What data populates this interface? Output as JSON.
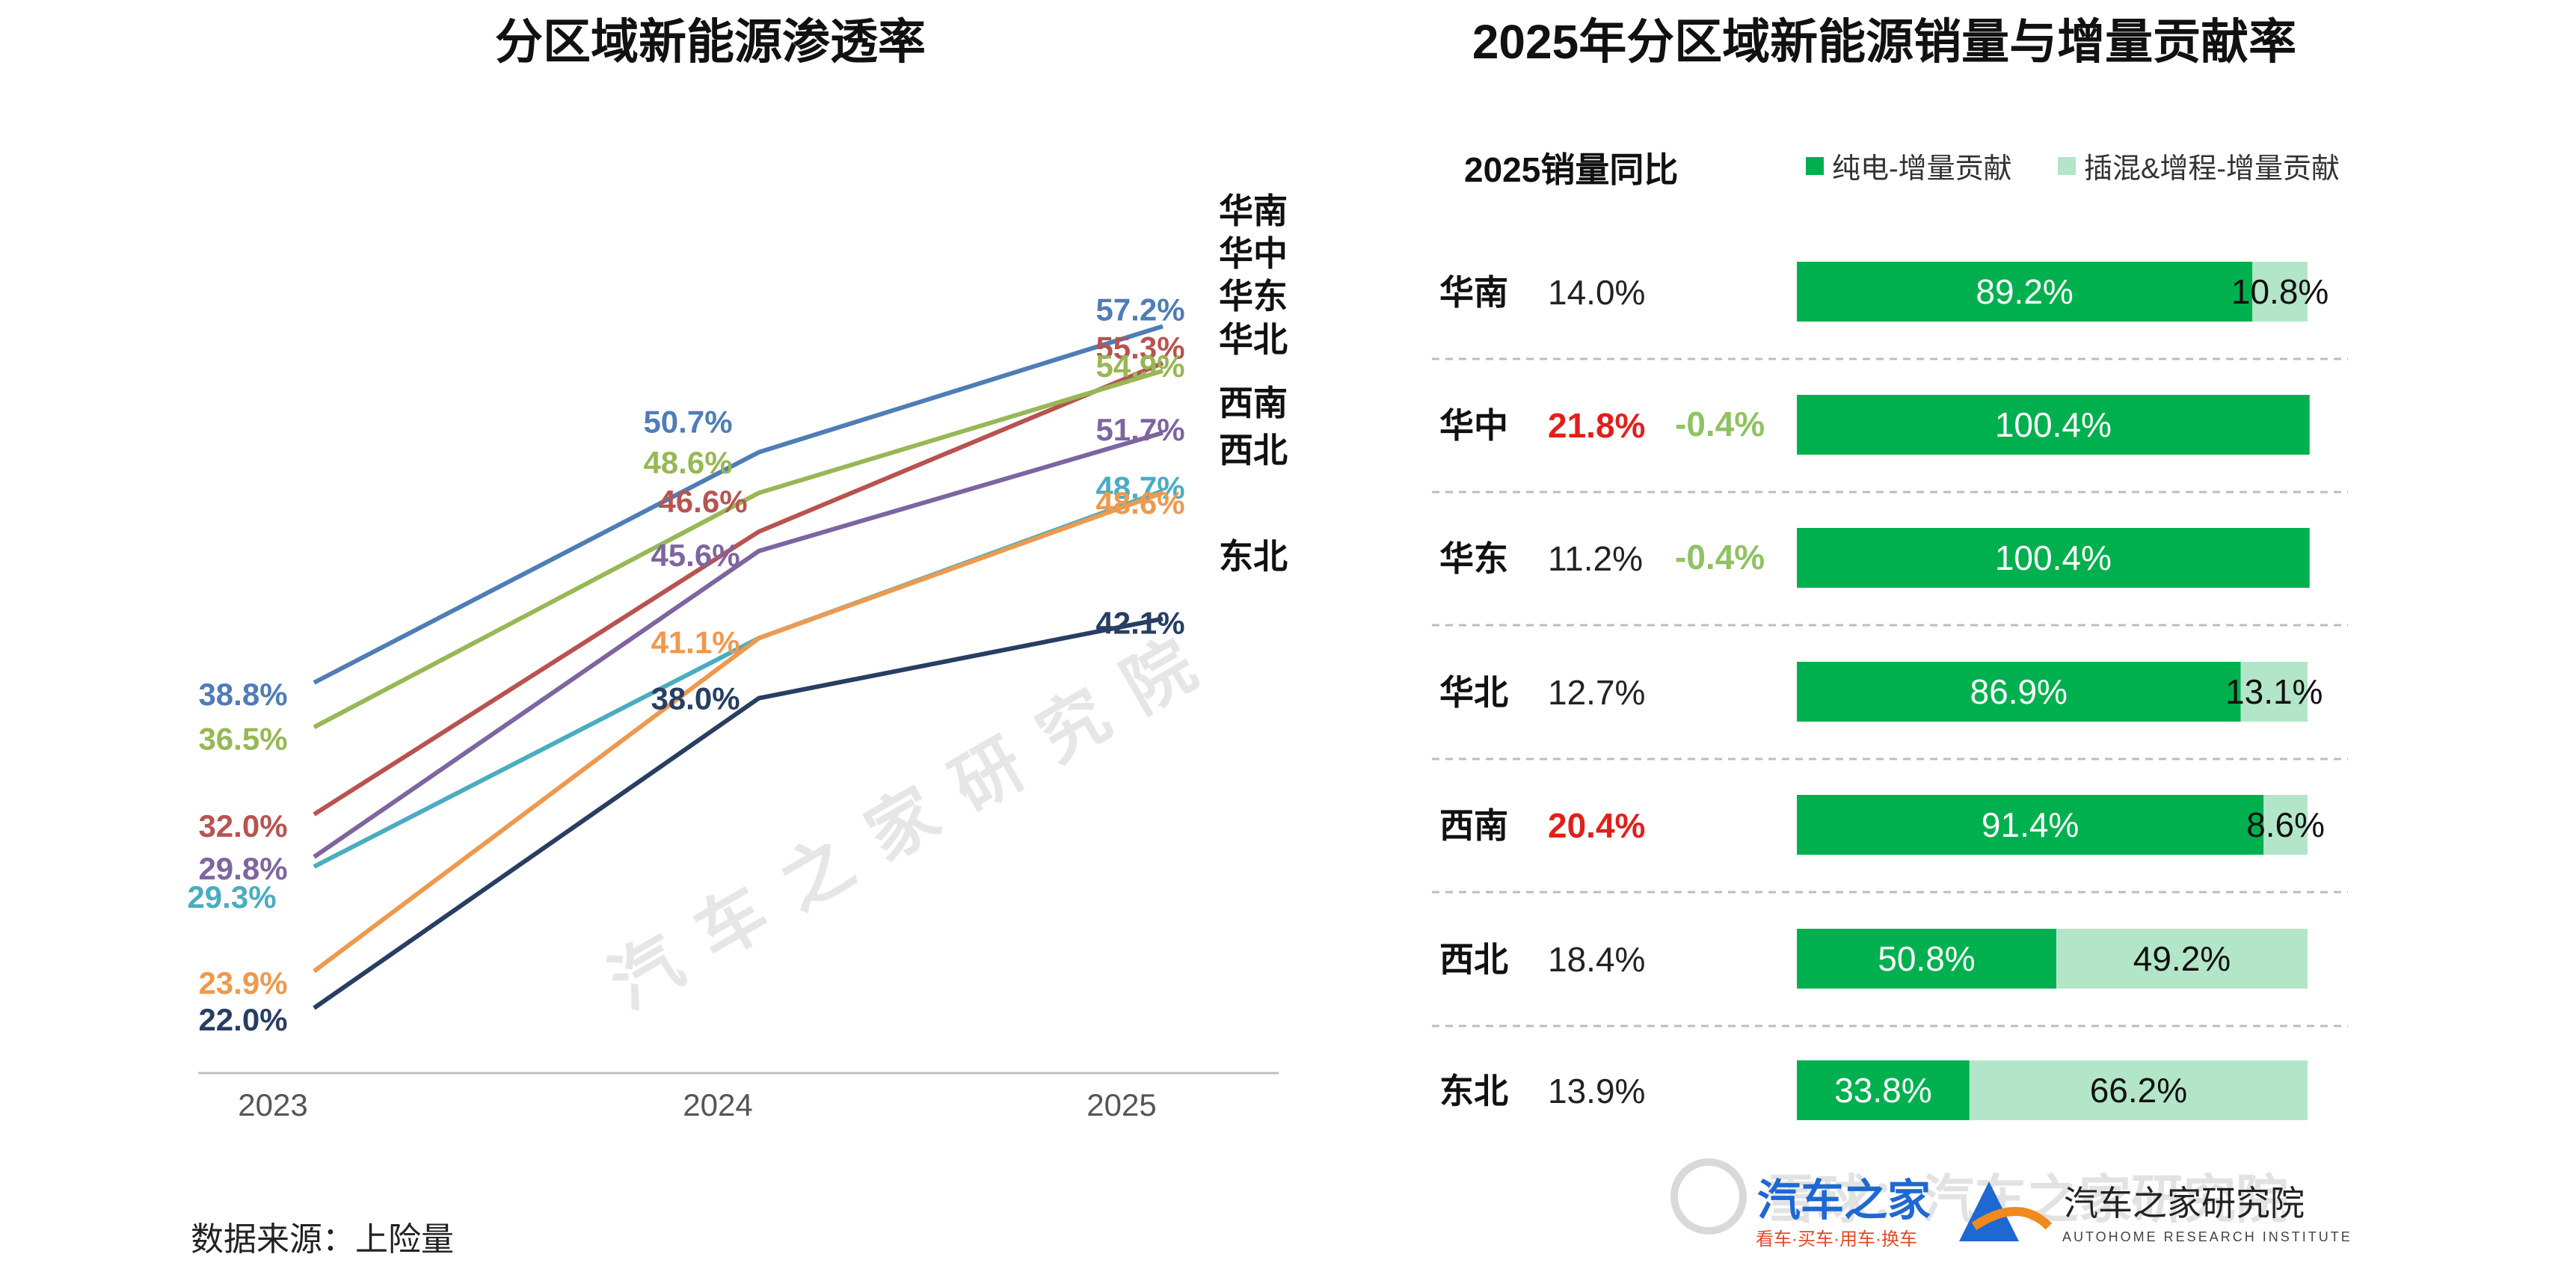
{
  "chart_data": [
    {
      "type": "line",
      "title": "分区域新能源渗透率",
      "categories": [
        "2023",
        "2024",
        "2025"
      ],
      "ylim": [
        20,
        60
      ],
      "series": [
        {
          "name": "华南",
          "color": "#4f7db5",
          "values": [
            38.8,
            50.7,
            57.2
          ],
          "labels": [
            "38.8%",
            "50.7%",
            "57.2%"
          ]
        },
        {
          "name": "华中",
          "color": "#b85350",
          "values": [
            32.0,
            46.6,
            55.3
          ],
          "labels": [
            "32.0%",
            "46.6%",
            "55.3%"
          ]
        },
        {
          "name": "华东",
          "color": "#97b855",
          "values": [
            36.5,
            48.6,
            54.9
          ],
          "labels": [
            "36.5%",
            "48.6%",
            "54.9%"
          ]
        },
        {
          "name": "华北",
          "color": "#7d65a0",
          "values": [
            29.8,
            45.6,
            51.7
          ],
          "labels": [
            "29.8%",
            "45.6%",
            "51.7%"
          ]
        },
        {
          "name": "西南",
          "color": "#4bacc1",
          "values": [
            29.3,
            41.1,
            48.7
          ],
          "labels": [
            "29.3%",
            "",
            "48.7%"
          ]
        },
        {
          "name": "西北",
          "color": "#ec9a4f",
          "values": [
            23.9,
            41.1,
            48.6
          ],
          "labels": [
            "23.9%",
            "41.1%",
            "48.6%"
          ]
        },
        {
          "name": "东北",
          "color": "#283e62",
          "values": [
            22.0,
            38.0,
            42.1
          ],
          "labels": [
            "22.0%",
            "38.0%",
            "42.1%"
          ]
        }
      ]
    },
    {
      "type": "bar",
      "orientation": "horizontal-stacked",
      "title": "2025年分区域新能源销量与增量贡献率",
      "column_header": "2025销量同比",
      "legend": [
        {
          "name": "纯电-增量贡献",
          "color": "#00b04f"
        },
        {
          "name": "插混&增程-增量贡献",
          "color": "#b3e5c9"
        }
      ],
      "rows": [
        {
          "region": "华南",
          "yoy": "14.0%",
          "highlight": false,
          "neg": "",
          "bev": 89.2,
          "bev_label": "89.2%",
          "phev": 10.8,
          "phev_label": "10.8%"
        },
        {
          "region": "华中",
          "yoy": "21.8%",
          "highlight": true,
          "neg": "-0.4%",
          "bev": 100.4,
          "bev_label": "100.4%",
          "phev": 0,
          "phev_label": ""
        },
        {
          "region": "华东",
          "yoy": "11.2%",
          "highlight": false,
          "neg": "-0.4%",
          "bev": 100.4,
          "bev_label": "100.4%",
          "phev": 0,
          "phev_label": ""
        },
        {
          "region": "华北",
          "yoy": "12.7%",
          "highlight": false,
          "neg": "",
          "bev": 86.9,
          "bev_label": "86.9%",
          "phev": 13.1,
          "phev_label": "13.1%"
        },
        {
          "region": "西南",
          "yoy": "20.4%",
          "highlight": true,
          "neg": "",
          "bev": 91.4,
          "bev_label": "91.4%",
          "phev": 8.6,
          "phev_label": "8.6%"
        },
        {
          "region": "西北",
          "yoy": "18.4%",
          "highlight": false,
          "neg": "",
          "bev": 50.8,
          "bev_label": "50.8%",
          "phev": 49.2,
          "phev_label": "49.2%"
        },
        {
          "region": "东北",
          "yoy": "13.9%",
          "highlight": false,
          "neg": "",
          "bev": 33.8,
          "bev_label": "33.8%",
          "phev": 66.2,
          "phev_label": "66.2%"
        }
      ]
    }
  ],
  "source": "数据来源：上险量",
  "watermark": "汽车之家研究院",
  "logos": {
    "autohome": "汽车之家",
    "autohome_tagline": "看车·买车·用车·换车",
    "institute": "汽车之家研究院",
    "institute_en": "AUTOHOME RESEARCH INSTITUTE",
    "corner_watermark": "雪球：汽车之家研究院"
  }
}
